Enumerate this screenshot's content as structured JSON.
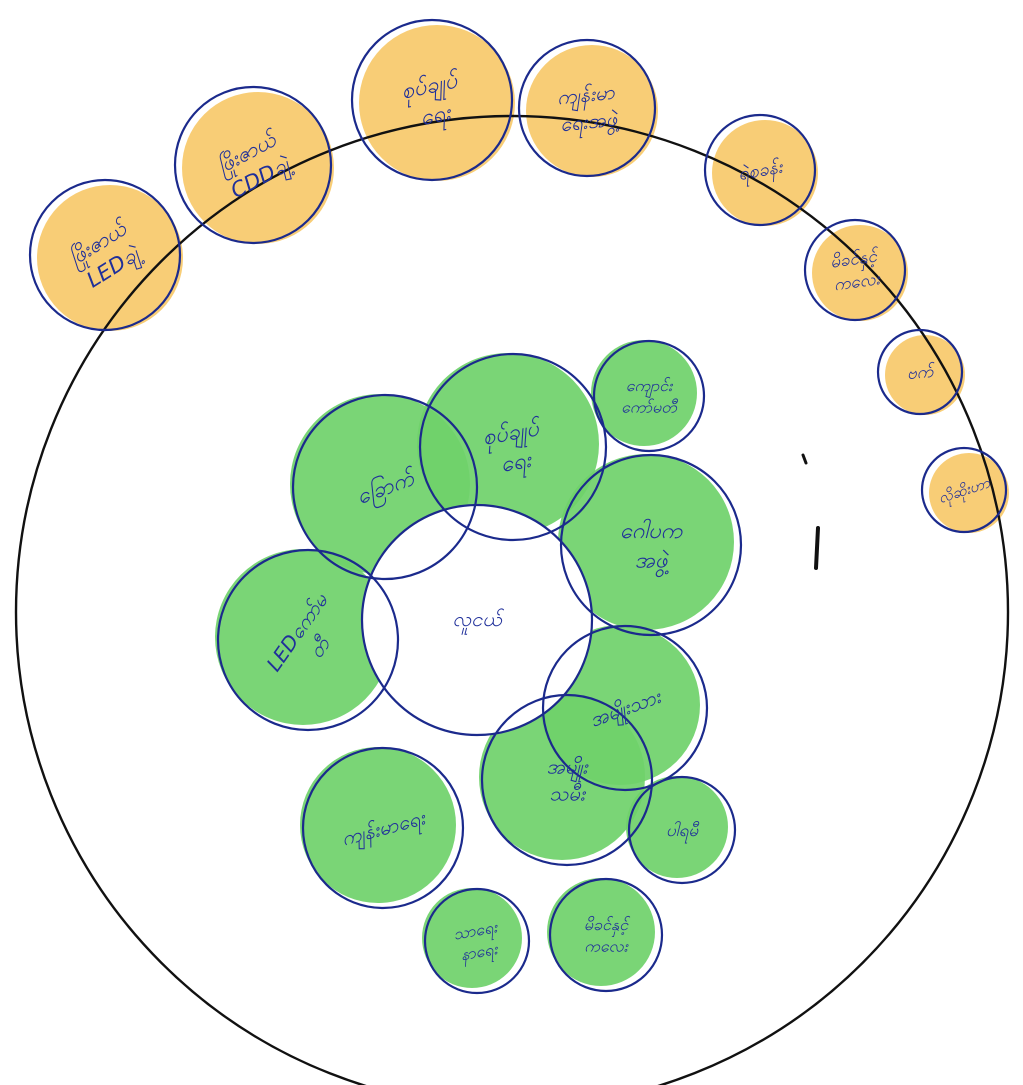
{
  "colors": {
    "orange_fill": "#f7c96a",
    "green_fill": "#6fd16a",
    "circle_stroke": "#1b2a8c",
    "outer_stroke": "#111111",
    "text": "#1f2f9a"
  },
  "center": {
    "label": [
      "လူငယ်"
    ]
  },
  "outside": [
    {
      "label": [
        "ဖြိုးဇာယ်",
        "LEDချဲ့"
      ]
    },
    {
      "label": [
        "ဖြိုးဇာယ်",
        "CDDချဲ့"
      ]
    },
    {
      "label": [
        "စုပ်ချုပ်",
        "ရေး"
      ]
    },
    {
      "label": [
        "ကျန်းမာ",
        "ရေးအဖွဲ့"
      ]
    },
    {
      "label": [
        "ရဲစခန်း"
      ]
    },
    {
      "label": [
        "မိခင်နှင့်",
        "ကလေး"
      ]
    },
    {
      "label": [
        "ဗက်"
      ]
    },
    {
      "label": [
        "လိုဆိုးဟာ"
      ]
    }
  ],
  "inside": [
    {
      "label": [
        "ခြောက်"
      ]
    },
    {
      "label": [
        "စုပ်ချုပ်",
        "ရေး"
      ]
    },
    {
      "label": [
        "ကျောင်း",
        "ကော်မတီ"
      ]
    },
    {
      "label": [
        "ဂေါပက",
        "အဖွဲ့"
      ]
    },
    {
      "label": [
        "LEDကော်မ",
        "တီ"
      ]
    },
    {
      "label": [
        "အမျိုးသား"
      ]
    },
    {
      "label": [
        "ကျန်းမာရေး"
      ]
    },
    {
      "label": [
        "အမျိုး",
        "သမီး"
      ]
    },
    {
      "label": [
        "ပါရမီ"
      ]
    },
    {
      "label": [
        "သာရေး",
        "နာရေး"
      ]
    },
    {
      "label": [
        "မိခင်နှင့်",
        "ကလေး"
      ]
    }
  ]
}
